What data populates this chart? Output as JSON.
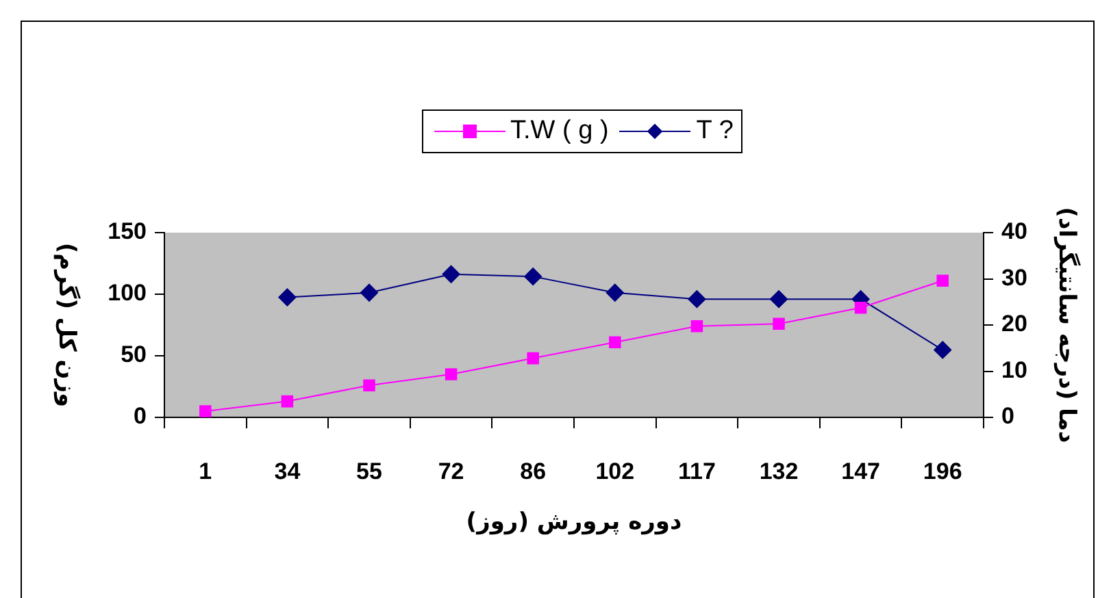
{
  "chart_data": {
    "type": "line",
    "categories": [
      "1",
      "34",
      "55",
      "72",
      "86",
      "102",
      "117",
      "132",
      "147",
      "196"
    ],
    "series": [
      {
        "name": "T.W ( g )",
        "color": "#ff00ff",
        "marker": "square",
        "values": [
          5,
          13,
          26,
          35,
          48,
          61,
          74,
          76,
          89,
          111
        ]
      },
      {
        "name": "T ?",
        "color": "#000080",
        "marker": "diamond",
        "axis": "y2",
        "values": [
          null,
          26,
          27,
          31,
          30.5,
          27,
          25.6,
          25.6,
          25.6,
          14.6
        ]
      }
    ],
    "xlabel": "دوره پرورش (روز)",
    "ylabel": "وزن کل (گرم)",
    "y2label": "دما (درجه سانتیگراد)",
    "ylim": [
      0,
      150
    ],
    "yticks": [
      0,
      50,
      100,
      150
    ],
    "y2lim": [
      0,
      40
    ],
    "y2ticks": [
      0,
      10,
      20,
      30,
      40
    ],
    "grid": false,
    "legend": "top",
    "line_style": "solid"
  }
}
